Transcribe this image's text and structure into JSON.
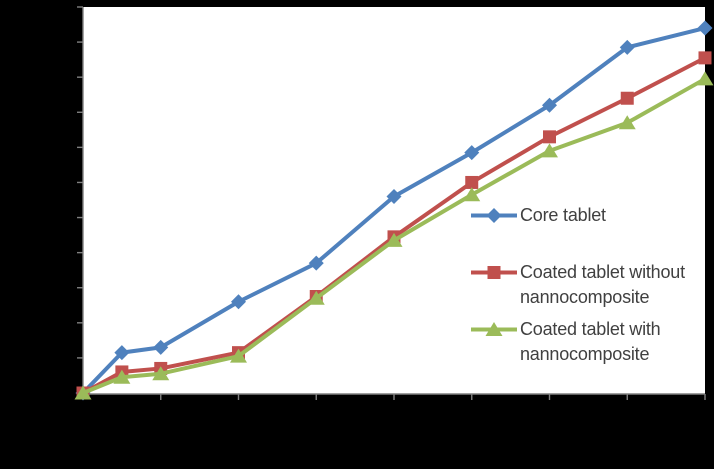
{
  "figure": {
    "background_color": "#000000",
    "plot_background_color": "#FFFFFF",
    "axis_color": "#808080",
    "legend_text_color": "#404040",
    "axis_tick_labels_visible": false
  },
  "chart_data": {
    "type": "line",
    "title": "",
    "xlabel": "",
    "ylabel": "",
    "x": [
      0,
      0.5,
      1,
      2,
      3,
      4,
      5,
      6,
      7,
      8
    ],
    "series": [
      {
        "name": "Core tablet",
        "color": "#4F81BD",
        "marker": "diamond",
        "values": [
          0,
          11.5,
          13,
          26,
          37,
          56,
          68.5,
          82,
          98.5,
          104
        ]
      },
      {
        "name": "Coated tablet without nannocomposite",
        "color": "#C0504D",
        "marker": "square",
        "values": [
          0,
          6,
          7,
          11.5,
          27.5,
          44.5,
          60,
          73,
          84,
          95.5
        ]
      },
      {
        "name": "Coated tablet with nannocomposite",
        "color": "#9BBB59",
        "marker": "triangle",
        "values": [
          0,
          4.5,
          5.5,
          10.5,
          27,
          43.5,
          56.5,
          69,
          77,
          89.5
        ]
      }
    ],
    "xlim": [
      0,
      8
    ],
    "ylim": [
      0,
      110
    ],
    "x_tick_step": 1,
    "y_tick_step": 10,
    "grid": false,
    "legend_position": "inside-right",
    "tick_labels_visible": false
  },
  "legend": {
    "items": [
      {
        "label": "Core tablet"
      },
      {
        "label": "Coated tablet without nannocomposite"
      },
      {
        "label": "Coated tablet with nannocomposite"
      }
    ]
  }
}
